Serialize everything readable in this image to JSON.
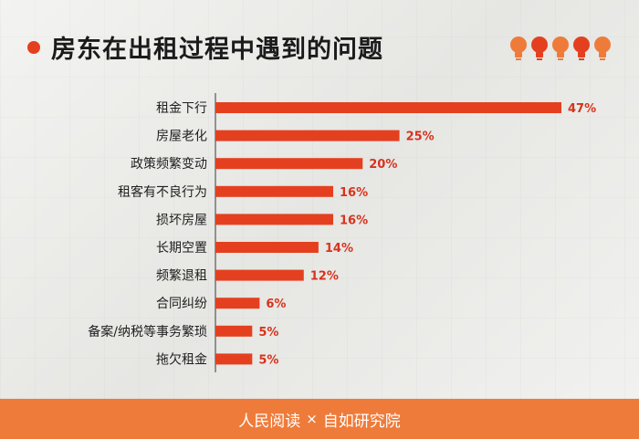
{
  "title": "房东在出租过程中遇到的问题",
  "footer": {
    "left": "人民阅读",
    "separator": "×",
    "right": "自如研究院"
  },
  "icons": {
    "decoration": "lightbulb-icon",
    "bulb_colors": [
      "#ef7b3a",
      "#e4401f"
    ]
  },
  "colors": {
    "bar": "#e4401f",
    "value_label": "#d7331c",
    "accent": "#e4401f",
    "footer_bg": "#ef7b3a"
  },
  "chart_data": {
    "type": "bar",
    "orientation": "horizontal",
    "title": "房东在出租过程中遇到的问题",
    "categories": [
      "租金下行",
      "房屋老化",
      "政策频繁变动",
      "租客有不良行为",
      "损坏房屋",
      "长期空置",
      "频繁退租",
      "合同纠纷",
      "备案/纳税等事务繁琐",
      "拖欠租金"
    ],
    "values": [
      47,
      25,
      20,
      16,
      16,
      14,
      12,
      6,
      5,
      5
    ],
    "value_labels": [
      "47%",
      "25%",
      "20%",
      "16%",
      "16%",
      "14%",
      "12%",
      "6%",
      "5%",
      "5%"
    ],
    "unit": "%",
    "xlim": [
      0,
      47
    ],
    "grid": false,
    "legend": "none"
  }
}
